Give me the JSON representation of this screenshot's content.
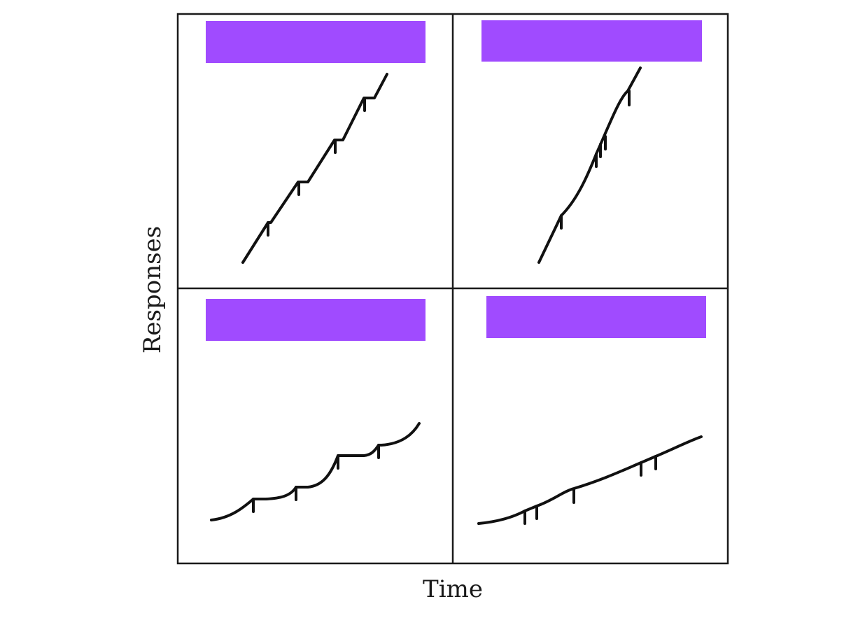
{
  "axis": {
    "x_label": "Time",
    "y_label": "Responses"
  },
  "colors": {
    "label_box": "#a04bff",
    "curve": "#111111",
    "frame": "#1a1a1a"
  },
  "panels": [
    {
      "position": "top-left",
      "label": ""
    },
    {
      "position": "top-right",
      "label": ""
    },
    {
      "position": "bottom-left",
      "label": ""
    },
    {
      "position": "bottom-right",
      "label": ""
    }
  ]
}
